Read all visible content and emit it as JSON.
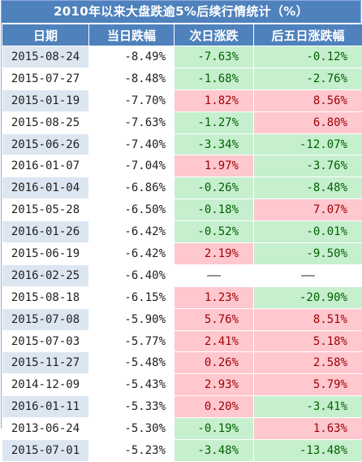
{
  "title": "2010年以来大盘跌逾5%后续行情统计（%）",
  "headers": [
    "日期",
    "当日跌幅",
    "次日涨跌",
    "后五日涨跌幅"
  ],
  "rows": [
    [
      "2015-08-24",
      "-8.49%",
      "-7.63%",
      "-0.12%"
    ],
    [
      "2015-07-27",
      "-8.48%",
      "-1.68%",
      "-2.76%"
    ],
    [
      "2015-01-19",
      "-7.70%",
      "1.82%",
      "8.56%"
    ],
    [
      "2015-08-25",
      "-7.63%",
      "-1.27%",
      "6.80%"
    ],
    [
      "2015-06-26",
      "-7.40%",
      "-3.34%",
      "-12.07%"
    ],
    [
      "2016-01-07",
      "-7.04%",
      "1.97%",
      "-3.76%"
    ],
    [
      "2016-01-04",
      "-6.86%",
      "-0.26%",
      "-8.48%"
    ],
    [
      "2015-05-28",
      "-6.50%",
      "-0.18%",
      "7.07%"
    ],
    [
      "2016-01-26",
      "-6.42%",
      "-0.52%",
      "-0.01%"
    ],
    [
      "2015-06-19",
      "-6.42%",
      "2.19%",
      "-9.50%"
    ],
    [
      "2016-02-25",
      "-6.40%",
      "——",
      "——"
    ],
    [
      "2015-08-18",
      "-6.15%",
      "1.23%",
      "-20.90%"
    ],
    [
      "2015-07-08",
      "-5.90%",
      "5.76%",
      "8.51%"
    ],
    [
      "2015-07-03",
      "-5.77%",
      "2.41%",
      "5.18%"
    ],
    [
      "2015-11-27",
      "-5.48%",
      "0.26%",
      "2.58%"
    ],
    [
      "2014-12-09",
      "-5.43%",
      "2.93%",
      "5.79%"
    ],
    [
      "2016-01-11",
      "-5.33%",
      "0.20%",
      "-3.41%"
    ],
    [
      "2013-06-24",
      "-5.30%",
      "-0.19%",
      "1.63%"
    ],
    [
      "2015-07-01",
      "-5.23%",
      "-3.48%",
      "-13.48%"
    ]
  ],
  "colors": {
    "header": "#4f81bd",
    "date_band": "#dce6f1",
    "positive_fill": "#ffc7ce",
    "positive_text": "#9c0006",
    "negative_fill": "#c6efce",
    "negative_text": "#006100"
  }
}
